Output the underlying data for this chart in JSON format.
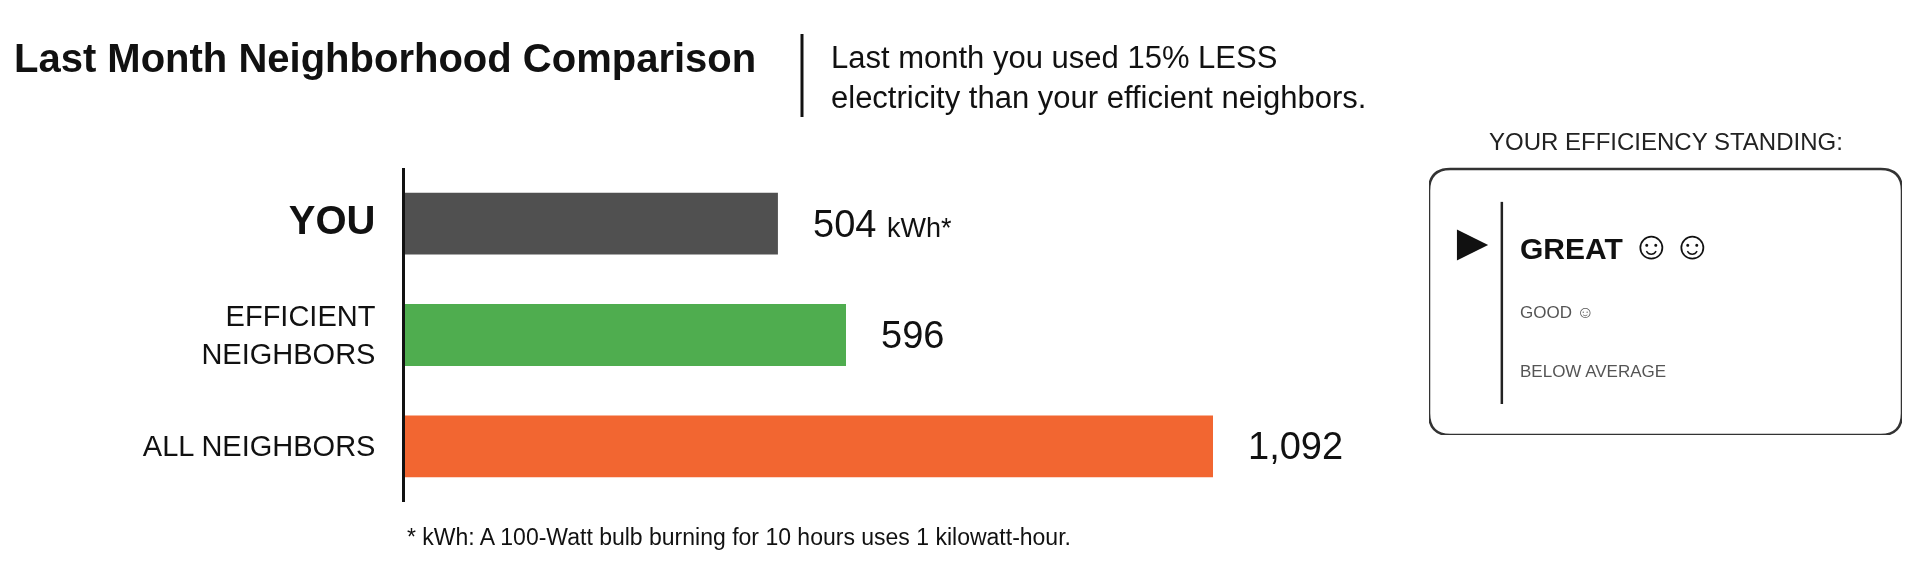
{
  "chart_data": [
    {
      "type": "bar",
      "orientation": "horizontal",
      "title": "Last Month Neighborhood Comparison",
      "subtitle": "Last month you used 15% LESS\nelectricity than your efficient neighbors.",
      "categories": [
        "YOU",
        "EFFICIENT NEIGHBORS",
        "ALL NEIGHBORS"
      ],
      "values": [
        504,
        596,
        1092
      ],
      "colors": [
        "#505050",
        "#4fad4f",
        "#f26631"
      ],
      "value_labels": [
        "504 kWh*",
        "596",
        "1,092"
      ],
      "annotations": [
        "* kWh: A 100-Watt bulb burning for 10 hours uses 1 kilowatt-hour."
      ],
      "tick_labels": "y"
    },
    {
      "type": "other",
      "title": "YOUR EFFICIENCY STANDING:",
      "annotations": [
        "GREAT ☺☺",
        "GOOD ☺",
        "BELOW AVERAGE"
      ]
    }
  ]
}
